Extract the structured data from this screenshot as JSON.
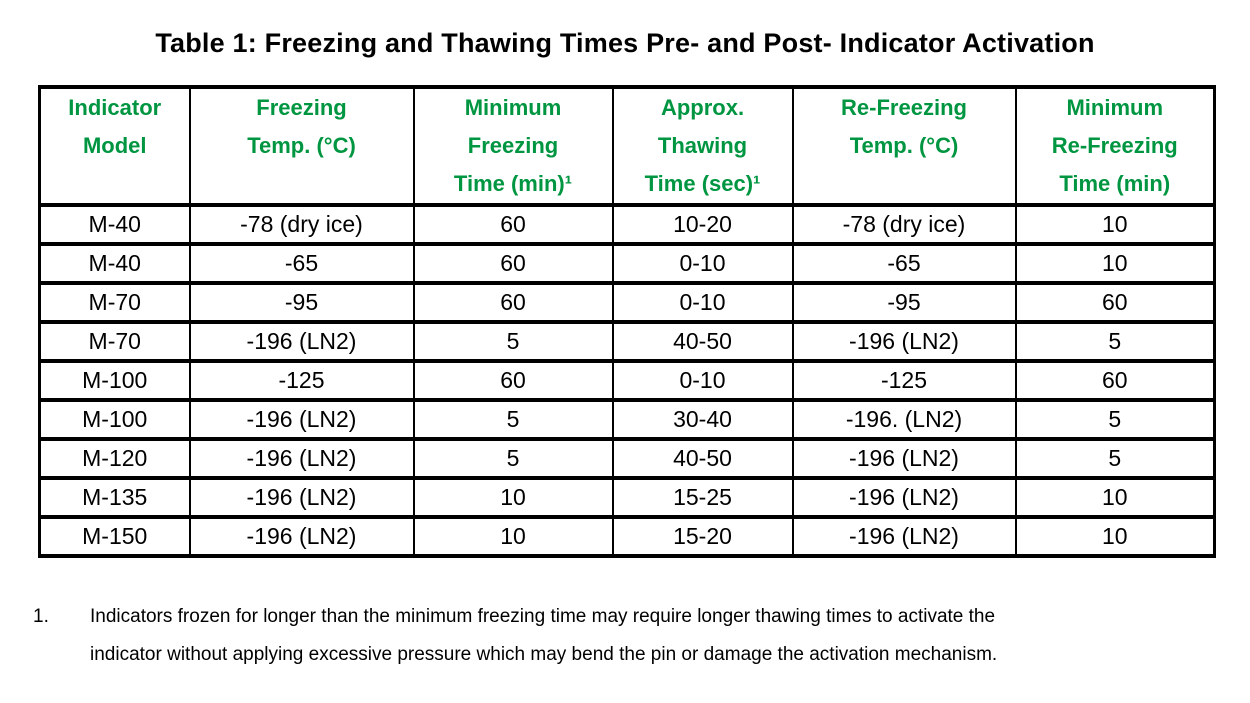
{
  "page": {
    "title": "Table 1: Freezing and Thawing Times Pre- and Post- Indicator Activation"
  },
  "colors": {
    "header_text": "#009641",
    "body_text": "#000000",
    "border": "#000000",
    "background": "#ffffff"
  },
  "table": {
    "headers": [
      "Indicator\nModel",
      "Freezing\nTemp. (°C)",
      "Minimum\nFreezing\nTime (min)¹",
      "Approx.\nThawing\nTime (sec)¹",
      "Re-Freezing\nTemp. (°C)",
      "Minimum\nRe-Freezing\nTime (min)"
    ],
    "rows": [
      {
        "cells": [
          "M-40",
          "-78 (dry ice)",
          "60",
          "10-20",
          "-78 (dry ice)",
          "10"
        ]
      },
      {
        "cells": [
          "M-40",
          "-65",
          "60",
          "0-10",
          "-65",
          "10"
        ]
      },
      {
        "cells": [
          "M-70",
          "-95",
          "60",
          "0-10",
          "-95",
          "60"
        ]
      },
      {
        "cells": [
          "M-70",
          "-196 (LN2)",
          "5",
          "40-50",
          "-196 (LN2)",
          "5"
        ]
      },
      {
        "cells": [
          "M-100",
          "-125",
          "60",
          "0-10",
          "-125",
          "60"
        ]
      },
      {
        "cells": [
          "M-100",
          "-196 (LN2)",
          "5",
          "30-40",
          "-196. (LN2)",
          "5"
        ]
      },
      {
        "cells": [
          "M-120",
          "-196 (LN2)",
          "5",
          "40-50",
          "-196 (LN2)",
          "5"
        ]
      },
      {
        "cells": [
          "M-135",
          "-196 (LN2)",
          "10",
          "15-25",
          "-196 (LN2)",
          "10"
        ]
      },
      {
        "cells": [
          "M-150",
          "-196 (LN2)",
          "10",
          "15-20",
          "-196 (LN2)",
          "10"
        ]
      }
    ]
  },
  "footnote": {
    "number": "1.",
    "text": "Indicators frozen for longer than the minimum freezing time may require longer thawing times to activate the\nindicator without applying excessive pressure which may bend the pin or damage the activation mechanism."
  }
}
